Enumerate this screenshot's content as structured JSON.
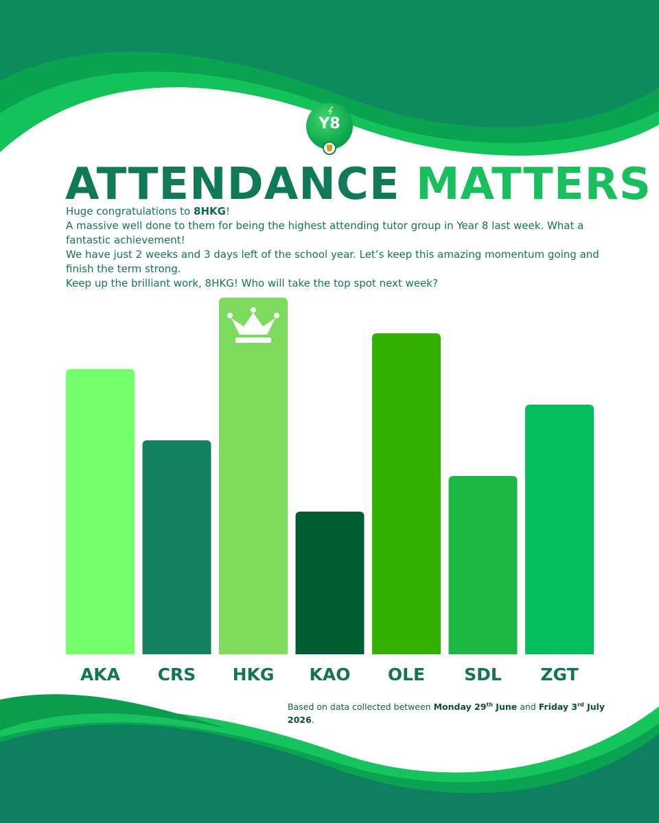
{
  "header": {
    "year_badge": "Y8",
    "title_part1": "ATTENDANCE",
    "title_part2": "MATTERS"
  },
  "intro": {
    "line1_prefix": "Huge congratulations to ",
    "line1_group": "8HKG",
    "line1_suffix": "!",
    "line2": "A massive well done to them for being the highest attending tutor group in Year 8 last week. What a fantastic achievement!",
    "line3": "We have just 2 weeks and 3 days left of the school year. Let’s keep this amazing momentum going and finish the term strong.",
    "line4": "Keep up the brilliant work, 8HKG! Who will take the top spot next week?"
  },
  "chart_data": {
    "type": "bar",
    "categories": [
      "AKA",
      "CRS",
      "HKG",
      "KAO",
      "OLE",
      "SDL",
      "ZGT"
    ],
    "values": [
      80,
      60,
      100,
      40,
      90,
      50,
      70
    ],
    "colors": [
      "#76ff6d",
      "#138160",
      "#7edb5e",
      "#005c32",
      "#33b002",
      "#20b844",
      "#04bf5d"
    ],
    "highlight": "HKG",
    "highlight_icon": "crown-icon",
    "title": "",
    "xlabel": "",
    "ylabel": "",
    "ylim": [
      0,
      100
    ],
    "grid": false,
    "legend": "none"
  },
  "footnote": {
    "prefix": "Based on data collected between ",
    "start_day": "Monday 29",
    "start_sup": "th",
    "start_month": " June",
    "middle": " and ",
    "end_day": "Friday 3",
    "end_sup": "rd",
    "end_month": " July 2026",
    "suffix": "."
  },
  "colors": {
    "dark_green": "#0f7a55",
    "bright_green": "#18bf5c",
    "wave_light": "#10a353"
  }
}
